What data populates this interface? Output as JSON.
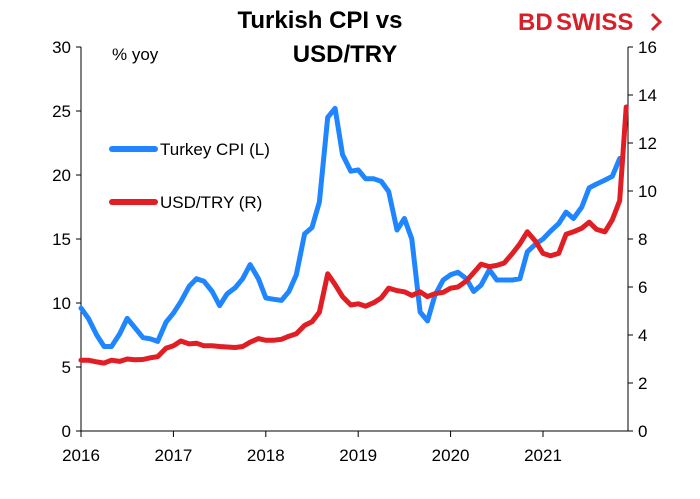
{
  "brand": {
    "part1": "BD",
    "part2": "SWISS",
    "color": "#d6212a"
  },
  "chart_data": {
    "type": "line",
    "title_lines": [
      "Turkish CPI vs",
      "USD/TRY"
    ],
    "unit_label": "% yoy",
    "xlim": [
      2016,
      2021.92
    ],
    "x_ticks": [
      2016,
      2017,
      2018,
      2019,
      2020,
      2021
    ],
    "y_left": {
      "lim": [
        0,
        30
      ],
      "ticks": [
        0,
        5,
        10,
        15,
        20,
        25,
        30
      ]
    },
    "y_right": {
      "lim": [
        0,
        16
      ],
      "ticks": [
        0,
        2,
        4,
        6,
        8,
        10,
        12,
        14,
        16
      ]
    },
    "grid": false,
    "legend_position": "left",
    "series": [
      {
        "name": "Turkey CPI (L)",
        "axis": "left",
        "color": "#1f86ff",
        "x": [
          2016.0,
          2016.08,
          2016.17,
          2016.25,
          2016.33,
          2016.42,
          2016.5,
          2016.58,
          2016.67,
          2016.75,
          2016.83,
          2016.92,
          2017.0,
          2017.08,
          2017.17,
          2017.25,
          2017.33,
          2017.42,
          2017.5,
          2017.58,
          2017.67,
          2017.75,
          2017.83,
          2017.92,
          2018.0,
          2018.08,
          2018.17,
          2018.25,
          2018.33,
          2018.42,
          2018.5,
          2018.58,
          2018.67,
          2018.75,
          2018.83,
          2018.92,
          2019.0,
          2019.08,
          2019.17,
          2019.25,
          2019.33,
          2019.42,
          2019.5,
          2019.58,
          2019.67,
          2019.75,
          2019.83,
          2019.92,
          2020.0,
          2020.08,
          2020.17,
          2020.25,
          2020.33,
          2020.42,
          2020.5,
          2020.58,
          2020.67,
          2020.75,
          2020.83,
          2020.92,
          2021.0,
          2021.08,
          2021.17,
          2021.25,
          2021.33,
          2021.42,
          2021.5,
          2021.58,
          2021.67,
          2021.75,
          2021.83
        ],
        "values": [
          9.6,
          8.8,
          7.5,
          6.6,
          6.6,
          7.6,
          8.8,
          8.1,
          7.3,
          7.2,
          7.0,
          8.5,
          9.2,
          10.1,
          11.3,
          11.9,
          11.7,
          10.9,
          9.8,
          10.7,
          11.2,
          11.9,
          13.0,
          11.9,
          10.4,
          10.3,
          10.2,
          10.9,
          12.2,
          15.4,
          15.9,
          17.9,
          24.5,
          25.2,
          21.6,
          20.3,
          20.4,
          19.7,
          19.7,
          19.5,
          18.7,
          15.7,
          16.6,
          15.0,
          9.3,
          8.6,
          10.6,
          11.8,
          12.2,
          12.4,
          11.9,
          10.9,
          11.4,
          12.6,
          11.8,
          11.8,
          11.8,
          11.9,
          14.0,
          14.6,
          15.0,
          15.6,
          16.2,
          17.1,
          16.6,
          17.5,
          19.0,
          19.3,
          19.6,
          19.9,
          21.3
        ]
      },
      {
        "name": "USD/TRY (R)",
        "axis": "right",
        "color": "#e01e24",
        "x": [
          2016.0,
          2016.08,
          2016.17,
          2016.25,
          2016.33,
          2016.42,
          2016.5,
          2016.58,
          2016.67,
          2016.75,
          2016.83,
          2016.92,
          2017.0,
          2017.08,
          2017.17,
          2017.25,
          2017.33,
          2017.42,
          2017.5,
          2017.58,
          2017.67,
          2017.75,
          2017.83,
          2017.92,
          2018.0,
          2018.08,
          2018.17,
          2018.25,
          2018.33,
          2018.42,
          2018.5,
          2018.58,
          2018.67,
          2018.75,
          2018.83,
          2018.92,
          2019.0,
          2019.08,
          2019.17,
          2019.25,
          2019.33,
          2019.42,
          2019.5,
          2019.58,
          2019.67,
          2019.75,
          2019.83,
          2019.92,
          2020.0,
          2020.08,
          2020.17,
          2020.25,
          2020.33,
          2020.42,
          2020.5,
          2020.58,
          2020.67,
          2020.75,
          2020.83,
          2020.92,
          2021.0,
          2021.08,
          2021.17,
          2021.25,
          2021.33,
          2021.42,
          2021.5,
          2021.58,
          2021.67,
          2021.75,
          2021.83,
          2021.9
        ],
        "values": [
          2.95,
          2.95,
          2.88,
          2.83,
          2.95,
          2.9,
          3.0,
          2.97,
          2.98,
          3.05,
          3.1,
          3.45,
          3.55,
          3.75,
          3.63,
          3.66,
          3.55,
          3.55,
          3.52,
          3.5,
          3.48,
          3.52,
          3.7,
          3.85,
          3.78,
          3.78,
          3.82,
          3.95,
          4.05,
          4.4,
          4.55,
          4.95,
          6.55,
          6.1,
          5.6,
          5.25,
          5.3,
          5.2,
          5.35,
          5.55,
          5.95,
          5.85,
          5.8,
          5.65,
          5.8,
          5.6,
          5.72,
          5.78,
          5.95,
          6.0,
          6.25,
          6.6,
          6.95,
          6.85,
          6.9,
          7.0,
          7.4,
          7.8,
          8.3,
          7.9,
          7.4,
          7.3,
          7.4,
          8.2,
          8.3,
          8.45,
          8.7,
          8.4,
          8.3,
          8.8,
          9.6,
          13.5
        ]
      }
    ]
  }
}
